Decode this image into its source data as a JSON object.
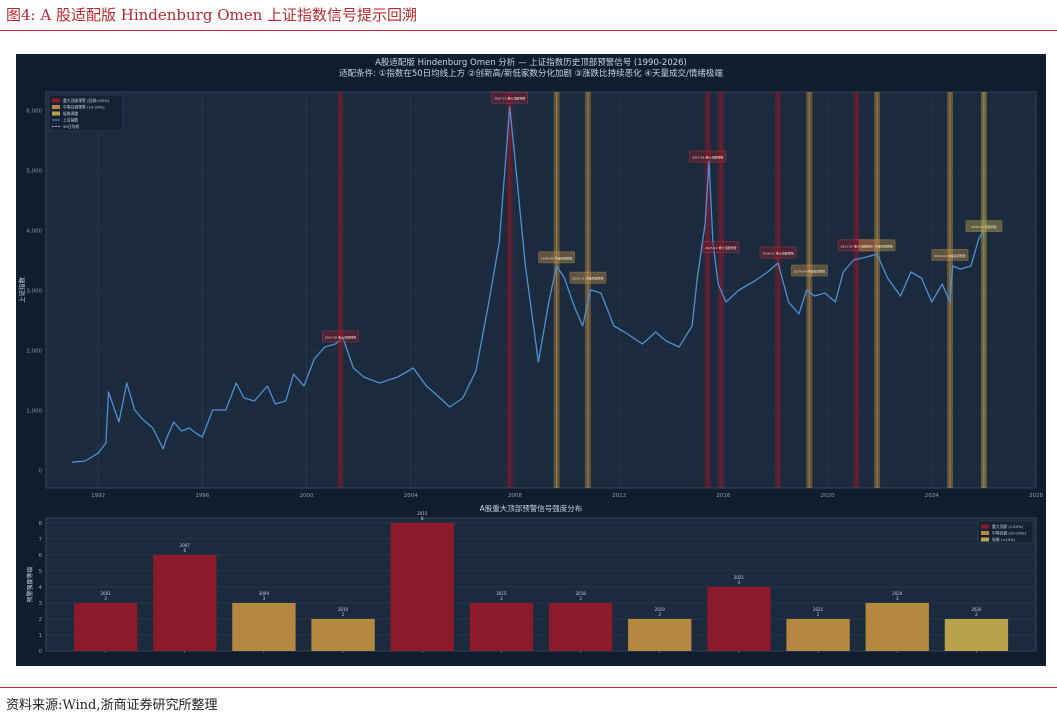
{
  "figure": {
    "title": "图4:   A 股适配版  Hindenburg Omen 上证指数信号提示回溯",
    "source": "资料来源:Wind,浙商证券研究所整理"
  },
  "colors": {
    "background": "#111d2c",
    "plot_bg": "#1b2a3d",
    "line": "#4f8fd4",
    "strong": "#8b1a2b",
    "medium": "#b58842",
    "weak": "#b8a24a",
    "text": "#c8d4e2"
  },
  "chart_data": [
    {
      "type": "line",
      "title": "A股适配版 Hindenburg Omen 分析 — 上证指数历史顶部预警信号 (1990-2026)",
      "subtitle": "适配条件: ①指数在50日均线上方 ②创新高/新低家数分化加剧 ③涨跌比持续恶化 ④天量成交/情绪极端",
      "xlabel": "",
      "ylabel": "上证指数",
      "xlim": [
        1990,
        2028
      ],
      "ylim": [
        -300,
        6300
      ],
      "x_ticks": [
        "1992",
        "1996",
        "2000",
        "2004",
        "2008",
        "2012",
        "2016",
        "2020",
        "2024",
        "2028"
      ],
      "y_ticks": [
        "0",
        "1,000",
        "2,000",
        "3,000",
        "4,000",
        "5,000",
        "6,000"
      ],
      "grid": true,
      "legend_position": "top-left",
      "legend": [
        "重大顶部预警 (回调>20%)",
        "中等回调预警 (10-20%)",
        "轻微调整",
        "上证指数",
        "50日均线"
      ],
      "series": [
        {
          "name": "上证指数",
          "x": [
            1991.0,
            1991.5,
            1992.0,
            1992.3,
            1992.4,
            1992.8,
            1993.1,
            1993.4,
            1993.7,
            1994.1,
            1994.5,
            1994.6,
            1994.9,
            1995.2,
            1995.5,
            1995.8,
            1996.0,
            1996.4,
            1996.9,
            1997.3,
            1997.6,
            1998.0,
            1998.5,
            1998.8,
            1999.2,
            1999.5,
            1999.9,
            2000.3,
            2000.7,
            2001.1,
            2001.4,
            2001.8,
            2002.2,
            2002.8,
            2003.5,
            2004.1,
            2004.6,
            2005.0,
            2005.5,
            2006.0,
            2006.5,
            2007.0,
            2007.4,
            2007.8,
            2008.0,
            2008.4,
            2008.9,
            2009.3,
            2009.6,
            2009.9,
            2010.3,
            2010.6,
            2010.9,
            2011.3,
            2011.8,
            2012.2,
            2012.9,
            2013.4,
            2013.8,
            2014.3,
            2014.8,
            2015.0,
            2015.3,
            2015.45,
            2015.6,
            2015.8,
            2016.1,
            2016.6,
            2017.2,
            2017.7,
            2018.1,
            2018.5,
            2018.9,
            2019.2,
            2019.5,
            2019.9,
            2020.3,
            2020.6,
            2021.0,
            2021.5,
            2021.9,
            2022.3,
            2022.8,
            2023.2,
            2023.6,
            2024.0,
            2024.4,
            2024.7,
            2024.8,
            2025.1,
            2025.5,
            2025.8,
            2026.0
          ],
          "values": [
            130,
            150,
            280,
            450,
            1300,
            800,
            1450,
            1000,
            850,
            700,
            350,
            500,
            800,
            650,
            700,
            600,
            550,
            1000,
            1000,
            1450,
            1200,
            1150,
            1400,
            1100,
            1150,
            1600,
            1400,
            1850,
            2050,
            2100,
            2200,
            1700,
            1550,
            1450,
            1550,
            1700,
            1400,
            1250,
            1050,
            1200,
            1650,
            2800,
            3800,
            6050,
            5200,
            3400,
            1800,
            2800,
            3400,
            3200,
            2700,
            2400,
            3000,
            2950,
            2400,
            2300,
            2100,
            2300,
            2150,
            2050,
            2400,
            3200,
            4100,
            5150,
            3800,
            3100,
            2800,
            3000,
            3150,
            3300,
            3450,
            2800,
            2600,
            3000,
            2900,
            2950,
            2800,
            3300,
            3500,
            3550,
            3600,
            3200,
            2900,
            3300,
            3200,
            2800,
            3100,
            2800,
            3400,
            3350,
            3400,
            3850,
            4000
          ]
        }
      ],
      "signals": [
        {
          "x": 2001.3,
          "level": "strong",
          "label": "2001-06 重大顶部预警",
          "y": 2200
        },
        {
          "x": 2007.8,
          "level": "strong",
          "label": "2007-10 重大顶部预警",
          "y": 6180
        },
        {
          "x": 2009.6,
          "level": "medium",
          "label": "2009-08 中等回调预警",
          "y": 3520
        },
        {
          "x": 2010.8,
          "level": "medium",
          "label": "2010-11 中等回调预警",
          "y": 3180
        },
        {
          "x": 2015.4,
          "level": "strong",
          "label": "2015-06 重大顶部预警",
          "y": 5200
        },
        {
          "x": 2015.9,
          "level": "strong",
          "label": "2015-12 重大顶部预警",
          "y": 3690
        },
        {
          "x": 2018.1,
          "level": "strong",
          "label": "2018-01 重大顶部预警",
          "y": 3600
        },
        {
          "x": 2019.3,
          "level": "medium",
          "label": "2019-04 中等回调预警",
          "y": 3300
        },
        {
          "x": 2021.1,
          "level": "strong",
          "label": "2021-02 重大顶部预警",
          "y": 3720
        },
        {
          "x": 2021.9,
          "level": "medium",
          "label": "2021-12 中等回调预警",
          "y": 3720
        },
        {
          "x": 2024.7,
          "level": "medium",
          "label": "2024-10 中等回调预警",
          "y": 3560
        },
        {
          "x": 2026.0,
          "level": "weak",
          "label": "2026-01 轻微调整",
          "y": 4040
        }
      ]
    },
    {
      "type": "bar",
      "title": "A股重大顶部预警信号强度分布",
      "ylabel": "预警强度等级",
      "ylim": [
        0,
        8.3
      ],
      "y_ticks": [
        "0",
        "1",
        "2",
        "3",
        "4",
        "5",
        "6",
        "7",
        "8"
      ],
      "grid": true,
      "legend_position": "top-right",
      "legend": [
        "重大顶部 (>20%)",
        "中等回调 (10-20%)",
        "轻微 (<10%)"
      ],
      "categories": [
        "2001",
        "2007",
        "2009",
        "2010",
        "2015",
        "2015",
        "2018",
        "2019",
        "2021",
        "2021",
        "2024",
        "2026"
      ],
      "values": [
        3,
        6,
        3,
        2,
        8,
        3,
        3,
        2,
        4,
        2,
        3,
        2
      ],
      "levels": [
        "strong",
        "strong",
        "medium",
        "medium",
        "strong",
        "strong",
        "strong",
        "medium",
        "strong",
        "medium",
        "medium",
        "weak"
      ]
    }
  ]
}
